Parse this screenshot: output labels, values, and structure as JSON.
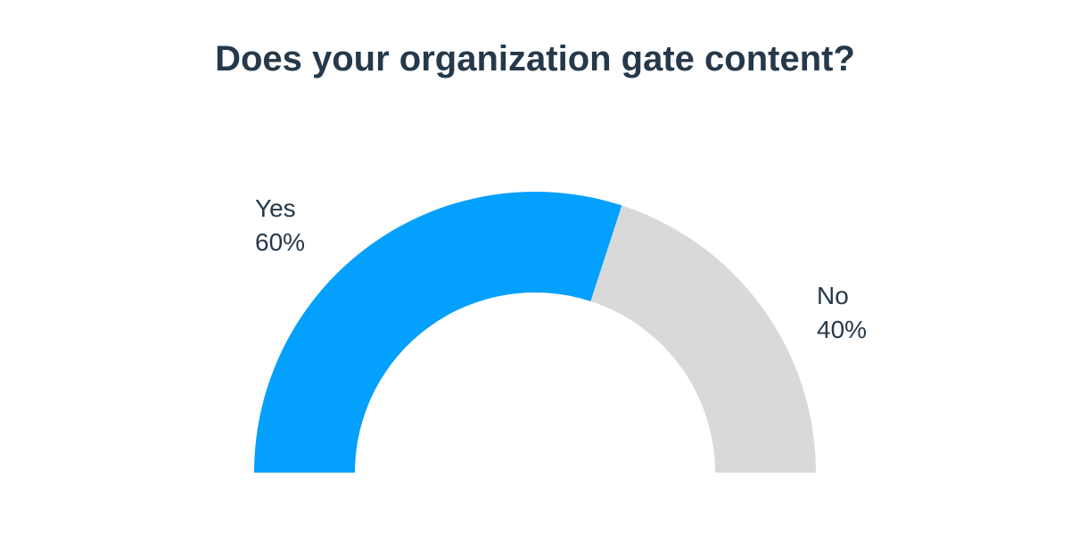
{
  "chart_data": {
    "type": "pie",
    "variant": "half-donut",
    "title": "Does your organization gate content?",
    "slices": [
      {
        "label": "Yes",
        "value": 60,
        "value_label": "60%",
        "color": "#03a0fe"
      },
      {
        "label": "No",
        "value": 40,
        "value_label": "40%",
        "color": "#d9d9d9"
      }
    ],
    "legend": "none"
  }
}
